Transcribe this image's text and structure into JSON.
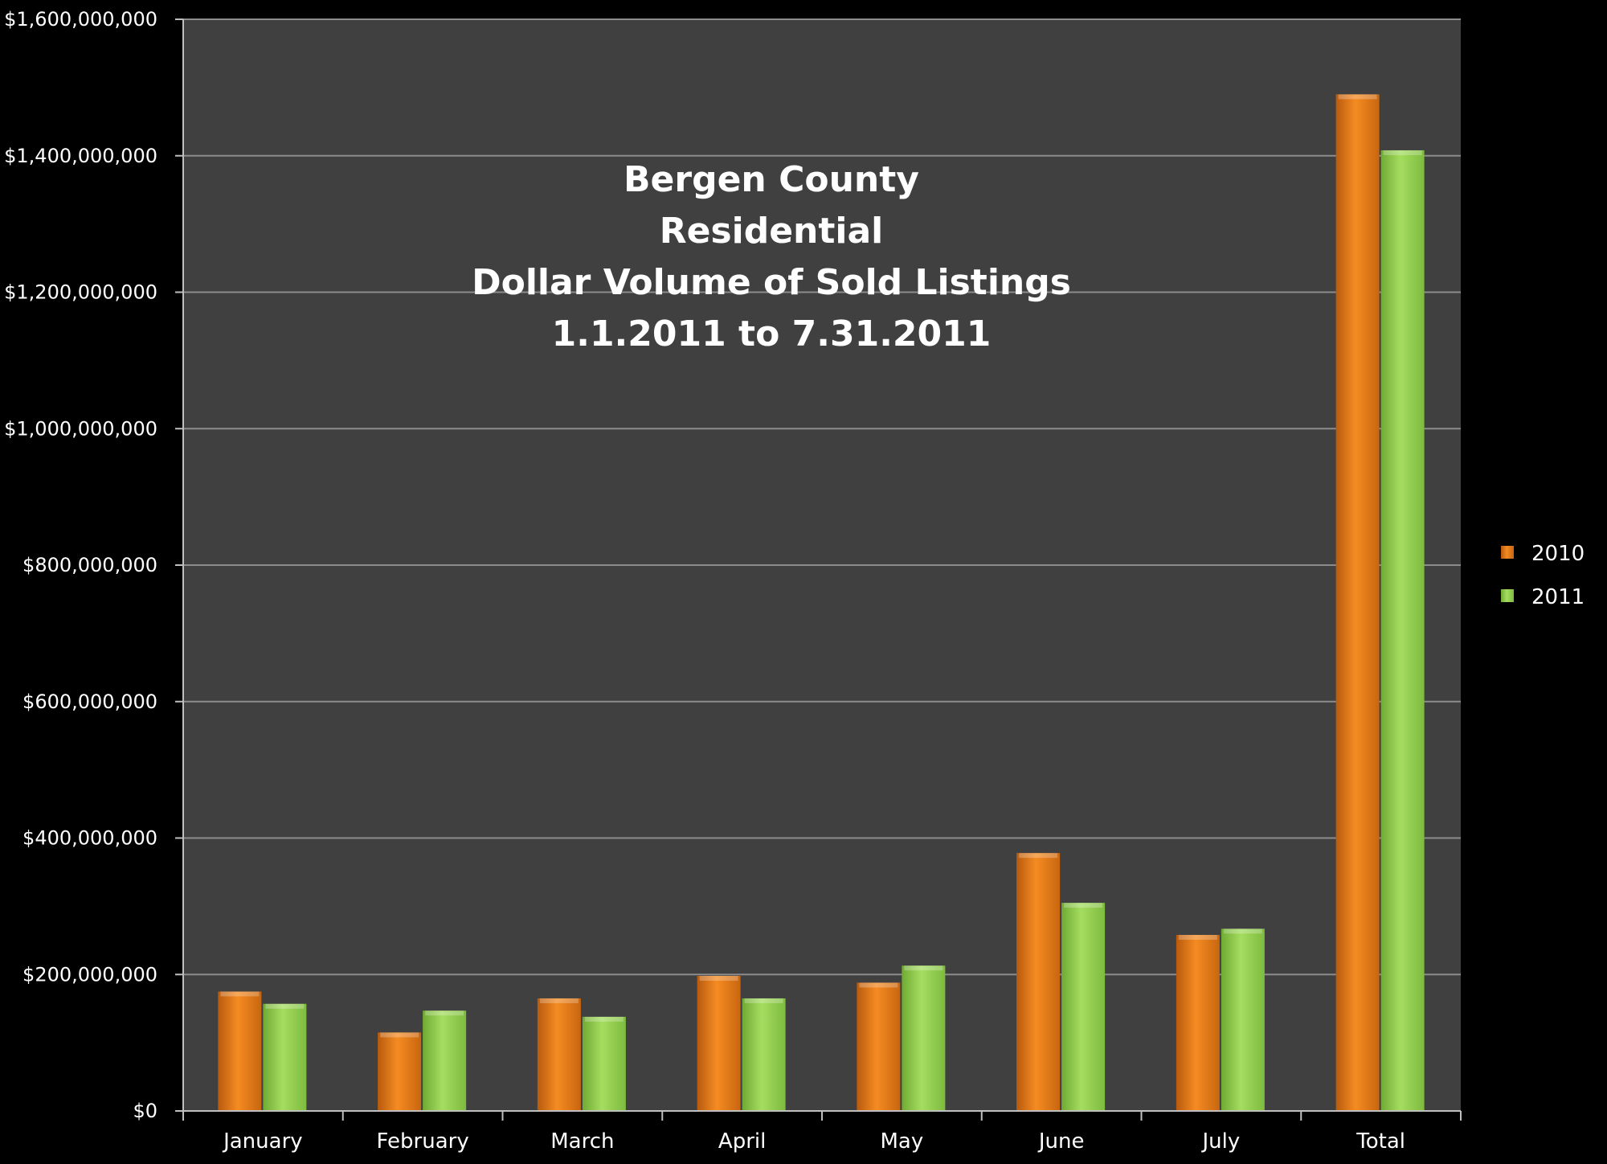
{
  "chart_data": {
    "type": "bar",
    "title": [
      "Bergen County",
      "Residential",
      "Dollar Volume of Sold Listings",
      "1.1.2011 to 7.31.2011"
    ],
    "xlabel": "",
    "ylabel": "",
    "categories": [
      "January",
      "February",
      "March",
      "April",
      "May",
      "June",
      "July",
      "Total"
    ],
    "series": [
      {
        "name": "2010",
        "color": "#E8801E",
        "values": [
          175000000,
          115000000,
          165000000,
          198000000,
          188000000,
          378000000,
          258000000,
          1490000000
        ]
      },
      {
        "name": "2011",
        "color": "#92D050",
        "values": [
          157000000,
          147000000,
          138000000,
          165000000,
          213000000,
          305000000,
          267000000,
          1408000000
        ]
      }
    ],
    "ylim": [
      0,
      1600000000
    ],
    "yticks": [
      0,
      200000000,
      400000000,
      600000000,
      800000000,
      1000000000,
      1200000000,
      1400000000,
      1600000000
    ],
    "ytick_labels": [
      "$0",
      "$200,000,000",
      "$400,000,000",
      "$600,000,000",
      "$800,000,000",
      "$1,000,000,000",
      "$1,200,000,000",
      "$1,400,000,000",
      "$1,600,000,000"
    ],
    "grid": true,
    "legend_position": "right",
    "colors": {
      "background": "#000000",
      "plot_area": "#404040",
      "gridline": "#8c8c8c"
    }
  }
}
